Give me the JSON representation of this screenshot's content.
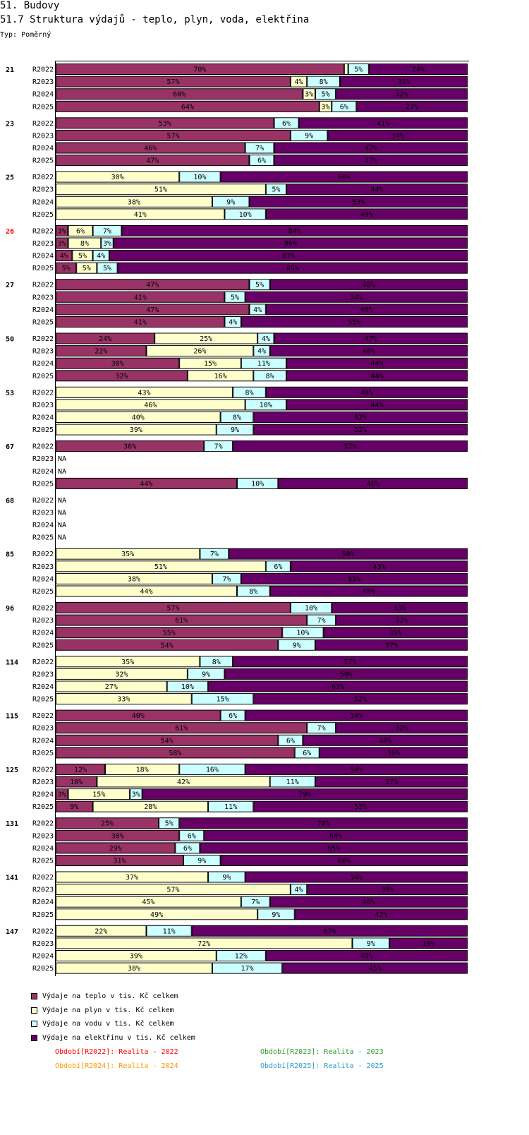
{
  "header": {
    "title": "51. Budovy",
    "subtitle": "51.7 Struktura výdajů - teplo, plyn, voda, elektřina",
    "type_label": "Typ: Poměrný"
  },
  "colors": {
    "teplo": "#993366",
    "plyn": "#ffffcc",
    "voda": "#ccffff",
    "elektrina": "#660066",
    "highlight": "#ff0000"
  },
  "legend": [
    {
      "key": "teplo",
      "label": "Výdaje na teplo v tis. Kč celkem"
    },
    {
      "key": "plyn",
      "label": "Výdaje na plyn v tis. Kč celkem"
    },
    {
      "key": "voda",
      "label": "Výdaje na vodu v tis. Kč celkem"
    },
    {
      "key": "elektrina",
      "label": "Výdaje na elektřinu v tis. Kč celkem"
    }
  ],
  "periods": [
    {
      "label": "Období[R2022]: Realita - 2022",
      "color": "#ff0000"
    },
    {
      "label": "Období[R2023]: Realita - 2023",
      "color": "#339933"
    },
    {
      "label": "Období[R2024]: Realita - 2024",
      "color": "#ff9900"
    },
    {
      "label": "Období[R2025]: Realita - 2025",
      "color": "#3399cc"
    }
  ],
  "chart_data": {
    "type": "bar",
    "orientation": "horizontal",
    "stacked": true,
    "normalized": true,
    "title": "51.7 Struktura výdajů - teplo, plyn, voda, elektřina",
    "series_order": [
      "teplo",
      "plyn",
      "voda",
      "elektrina"
    ],
    "na_label": "NA",
    "groups": [
      {
        "id": "21",
        "rows": [
          {
            "period": "R2022",
            "values": [
              70,
              1,
              5,
              24
            ]
          },
          {
            "period": "R2023",
            "values": [
              57,
              4,
              8,
              31
            ]
          },
          {
            "period": "R2024",
            "values": [
              60,
              3,
              5,
              32
            ]
          },
          {
            "period": "R2025",
            "values": [
              64,
              3,
              6,
              27
            ]
          }
        ]
      },
      {
        "id": "23",
        "rows": [
          {
            "period": "R2022",
            "values": [
              53,
              0,
              6,
              41
            ]
          },
          {
            "period": "R2023",
            "values": [
              57,
              0,
              9,
              34
            ]
          },
          {
            "period": "R2024",
            "values": [
              46,
              0,
              7,
              47
            ]
          },
          {
            "period": "R2025",
            "values": [
              47,
              0,
              6,
              47
            ]
          }
        ]
      },
      {
        "id": "25",
        "rows": [
          {
            "period": "R2022",
            "values": [
              0,
              30,
              10,
              60
            ]
          },
          {
            "period": "R2023",
            "values": [
              0,
              51,
              5,
              44
            ]
          },
          {
            "period": "R2024",
            "values": [
              0,
              38,
              9,
              53
            ]
          },
          {
            "period": "R2025",
            "values": [
              0,
              41,
              10,
              49
            ]
          }
        ]
      },
      {
        "id": "26",
        "highlight": true,
        "rows": [
          {
            "period": "R2022",
            "values": [
              3,
              6,
              7,
              84
            ]
          },
          {
            "period": "R2023",
            "values": [
              3,
              8,
              3,
              86
            ]
          },
          {
            "period": "R2024",
            "values": [
              4,
              5,
              4,
              87
            ]
          },
          {
            "period": "R2025",
            "values": [
              5,
              5,
              5,
              85
            ]
          }
        ]
      },
      {
        "id": "27",
        "rows": [
          {
            "period": "R2022",
            "values": [
              47,
              0,
              5,
              48
            ]
          },
          {
            "period": "R2023",
            "values": [
              41,
              0,
              5,
              54
            ]
          },
          {
            "period": "R2024",
            "values": [
              47,
              0,
              4,
              49
            ]
          },
          {
            "period": "R2025",
            "values": [
              41,
              0,
              4,
              55
            ]
          }
        ]
      },
      {
        "id": "50",
        "rows": [
          {
            "period": "R2022",
            "values": [
              24,
              25,
              4,
              47
            ]
          },
          {
            "period": "R2023",
            "values": [
              22,
              26,
              4,
              48
            ]
          },
          {
            "period": "R2024",
            "values": [
              30,
              15,
              11,
              44
            ]
          },
          {
            "period": "R2025",
            "values": [
              32,
              16,
              8,
              44
            ]
          }
        ]
      },
      {
        "id": "53",
        "rows": [
          {
            "period": "R2022",
            "values": [
              0,
              43,
              8,
              49
            ]
          },
          {
            "period": "R2023",
            "values": [
              0,
              46,
              10,
              44
            ]
          },
          {
            "period": "R2024",
            "values": [
              0,
              40,
              8,
              52
            ]
          },
          {
            "period": "R2025",
            "values": [
              0,
              39,
              9,
              52
            ]
          }
        ]
      },
      {
        "id": "67",
        "rows": [
          {
            "period": "R2022",
            "values": [
              36,
              0,
              7,
              57
            ]
          },
          {
            "period": "R2023",
            "values": null
          },
          {
            "period": "R2024",
            "values": null
          },
          {
            "period": "R2025",
            "values": [
              44,
              0,
              10,
              46
            ]
          }
        ]
      },
      {
        "id": "68",
        "rows": [
          {
            "period": "R2022",
            "values": null
          },
          {
            "period": "R2023",
            "values": null
          },
          {
            "period": "R2024",
            "values": null
          },
          {
            "period": "R2025",
            "values": null
          }
        ]
      },
      {
        "id": "85",
        "rows": [
          {
            "period": "R2022",
            "values": [
              0,
              35,
              7,
              58
            ]
          },
          {
            "period": "R2023",
            "values": [
              0,
              51,
              6,
              43
            ]
          },
          {
            "period": "R2024",
            "values": [
              0,
              38,
              7,
              55
            ]
          },
          {
            "period": "R2025",
            "values": [
              0,
              44,
              8,
              48
            ]
          }
        ]
      },
      {
        "id": "96",
        "rows": [
          {
            "period": "R2022",
            "values": [
              57,
              0,
              10,
              33
            ]
          },
          {
            "period": "R2023",
            "values": [
              61,
              0,
              7,
              32
            ]
          },
          {
            "period": "R2024",
            "values": [
              55,
              0,
              10,
              35
            ]
          },
          {
            "period": "R2025",
            "values": [
              54,
              0,
              9,
              37
            ]
          }
        ]
      },
      {
        "id": "114",
        "rows": [
          {
            "period": "R2022",
            "values": [
              0,
              35,
              8,
              57
            ]
          },
          {
            "period": "R2023",
            "values": [
              0,
              32,
              9,
              59
            ]
          },
          {
            "period": "R2024",
            "values": [
              0,
              27,
              10,
              63
            ]
          },
          {
            "period": "R2025",
            "values": [
              0,
              33,
              15,
              52
            ]
          }
        ]
      },
      {
        "id": "115",
        "rows": [
          {
            "period": "R2022",
            "values": [
              40,
              0,
              6,
              54
            ]
          },
          {
            "period": "R2023",
            "values": [
              61,
              0,
              7,
              32
            ]
          },
          {
            "period": "R2024",
            "values": [
              54,
              0,
              6,
              40
            ]
          },
          {
            "period": "R2025",
            "values": [
              58,
              0,
              6,
              36
            ]
          }
        ]
      },
      {
        "id": "125",
        "rows": [
          {
            "period": "R2022",
            "values": [
              12,
              18,
              16,
              54
            ]
          },
          {
            "period": "R2023",
            "values": [
              10,
              42,
              11,
              37
            ]
          },
          {
            "period": "R2024",
            "values": [
              3,
              15,
              3,
              79
            ]
          },
          {
            "period": "R2025",
            "values": [
              9,
              28,
              11,
              52
            ]
          }
        ]
      },
      {
        "id": "131",
        "rows": [
          {
            "period": "R2022",
            "values": [
              25,
              0,
              5,
              70
            ]
          },
          {
            "period": "R2023",
            "values": [
              30,
              0,
              6,
              64
            ]
          },
          {
            "period": "R2024",
            "values": [
              29,
              0,
              6,
              65
            ]
          },
          {
            "period": "R2025",
            "values": [
              31,
              0,
              9,
              60
            ]
          }
        ]
      },
      {
        "id": "141",
        "rows": [
          {
            "period": "R2022",
            "values": [
              0,
              37,
              9,
              54
            ]
          },
          {
            "period": "R2023",
            "values": [
              0,
              57,
              4,
              39
            ]
          },
          {
            "period": "R2024",
            "values": [
              0,
              45,
              7,
              48
            ]
          },
          {
            "period": "R2025",
            "values": [
              0,
              49,
              9,
              42
            ]
          }
        ]
      },
      {
        "id": "147",
        "rows": [
          {
            "period": "R2022",
            "values": [
              0,
              22,
              11,
              67
            ]
          },
          {
            "period": "R2023",
            "values": [
              0,
              72,
              9,
              19
            ]
          },
          {
            "period": "R2024",
            "values": [
              0,
              39,
              12,
              49
            ]
          },
          {
            "period": "R2025",
            "values": [
              0,
              38,
              17,
              45
            ]
          }
        ]
      }
    ]
  }
}
